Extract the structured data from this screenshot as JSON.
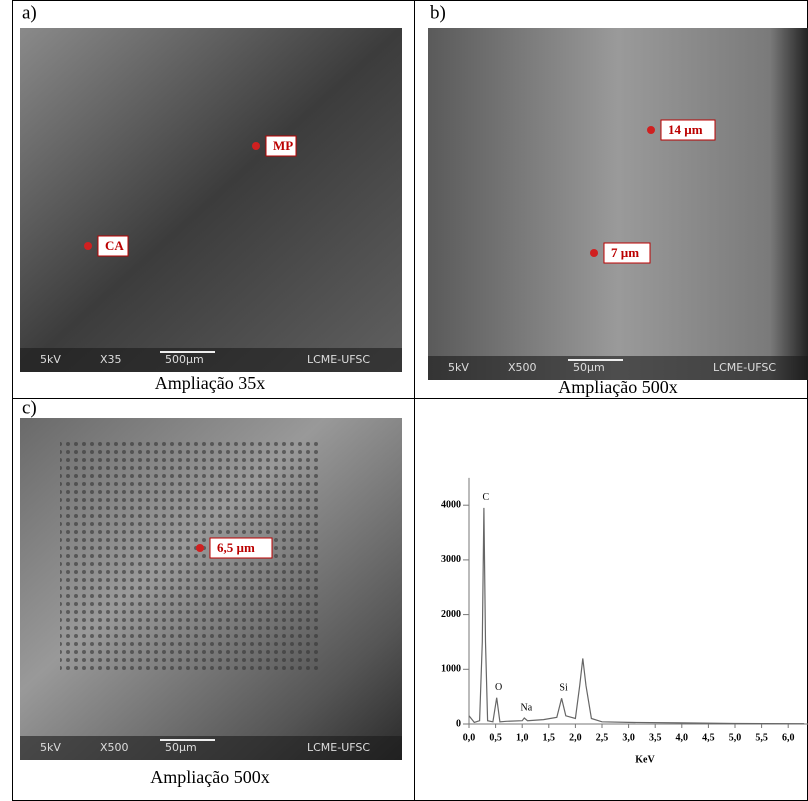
{
  "panels": [
    {
      "label": "a)",
      "caption": "Ampliação 35x",
      "annotations": [
        "MP",
        "CA"
      ],
      "scale_bar": [
        "5kV",
        "X35",
        "500µm",
        "LCME-UFSC"
      ]
    },
    {
      "label": "b)",
      "caption": "Ampliação 500x",
      "annotations": [
        "14 µm",
        "7 µm"
      ],
      "scale_bar": [
        "5kV",
        "X500",
        "50µm",
        "LCME-UFSC"
      ]
    },
    {
      "label": "c)",
      "caption": "Ampliação 500x",
      "annotations": [
        "6,5 µm"
      ],
      "scale_bar": [
        "5kV",
        "X500",
        "50µm",
        "LCME-UFSC"
      ]
    }
  ],
  "chart_data": {
    "type": "line",
    "color": "#666666",
    "x": [
      0,
      0.1,
      0.2,
      0.25,
      0.28,
      0.31,
      0.35,
      0.45,
      0.52,
      0.58,
      0.7,
      1.0,
      1.04,
      1.1,
      1.4,
      1.65,
      1.74,
      1.82,
      2.0,
      2.08,
      2.14,
      2.2,
      2.3,
      2.5,
      3.0,
      4.0,
      5.0,
      6.3
    ],
    "values": [
      150,
      30,
      60,
      1500,
      3950,
      1500,
      60,
      40,
      480,
      40,
      50,
      60,
      110,
      60,
      80,
      120,
      470,
      150,
      100,
      700,
      1200,
      700,
      100,
      40,
      30,
      20,
      10,
      5
    ],
    "xlim": [
      0,
      6.3
    ],
    "ylim": [
      0,
      4500
    ],
    "xticks": [
      {
        "value": 0,
        "label": "0,0"
      },
      {
        "value": 0.5,
        "label": "0,5"
      },
      {
        "value": 1,
        "label": "1,0"
      },
      {
        "value": 1.5,
        "label": "1,5"
      },
      {
        "value": 2,
        "label": "2,0"
      },
      {
        "value": 2.5,
        "label": "2,5"
      },
      {
        "value": 3,
        "label": "3,0"
      },
      {
        "value": 3.5,
        "label": "3,5"
      },
      {
        "value": 4,
        "label": "4,0"
      },
      {
        "value": 4.5,
        "label": "4,5"
      },
      {
        "value": 5,
        "label": "5,0"
      },
      {
        "value": 5.5,
        "label": "5,5"
      },
      {
        "value": 6,
        "label": "6,0"
      }
    ],
    "yticks": [
      0,
      1000,
      2000,
      3000,
      4000
    ],
    "x_label": "KeV",
    "peak_labels": [
      {
        "label": "C",
        "x": 0.28
      },
      {
        "label": "O",
        "x": 0.52
      },
      {
        "label": "Na",
        "x": 1.04
      },
      {
        "label": "Si",
        "x": 1.74
      }
    ]
  }
}
